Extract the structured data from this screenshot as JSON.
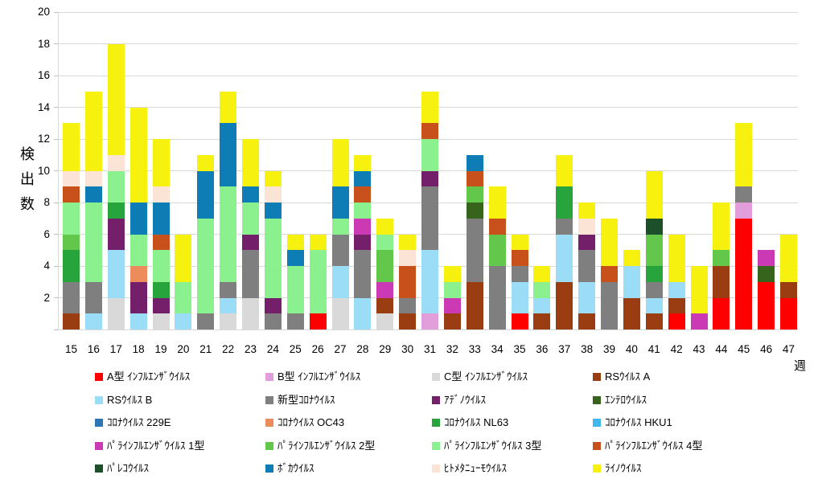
{
  "chart_data": {
    "type": "bar",
    "stacked": true,
    "title": "",
    "xlabel": "週",
    "ylabel": "検出数",
    "ylim": [
      0,
      20
    ],
    "y_tick_step": 2,
    "grid": true,
    "legend_position": "bottom",
    "categories": [
      "15",
      "16",
      "17",
      "18",
      "19",
      "20",
      "21",
      "22",
      "23",
      "24",
      "25",
      "26",
      "27",
      "28",
      "29",
      "30",
      "31",
      "32",
      "33",
      "34",
      "35",
      "36",
      "37",
      "38",
      "39",
      "40",
      "41",
      "42",
      "43",
      "44",
      "45",
      "46",
      "47"
    ],
    "series": [
      {
        "name": "A型 ｲﾝﾌﾙｴﾝｻﾞｳｲﾙｽ",
        "color": "#FF0000",
        "values": [
          0,
          0,
          0,
          0,
          0,
          0,
          0,
          0,
          0,
          0,
          0,
          1,
          0,
          0,
          0,
          0,
          0,
          0,
          0,
          0,
          1,
          0,
          0,
          0,
          0,
          0,
          0,
          1,
          0,
          2,
          7,
          3,
          2
        ]
      },
      {
        "name": "B型 ｲﾝﾌﾙｴﾝｻﾞｳｲﾙｽ",
        "color": "#E19EDA",
        "values": [
          0,
          0,
          0,
          0,
          0,
          0,
          0,
          0,
          0,
          0,
          0,
          0,
          0,
          0,
          0,
          0,
          1,
          0,
          0,
          0,
          0,
          0,
          0,
          0,
          0,
          0,
          0,
          0,
          0,
          0,
          1,
          0,
          0
        ]
      },
      {
        "name": "C型 ｲﾝﾌﾙｴﾝｻﾞｳｲﾙｽ",
        "color": "#D9D9D9",
        "values": [
          0,
          0,
          2,
          0,
          1,
          0,
          0,
          1,
          2,
          0,
          0,
          0,
          2,
          0,
          1,
          0,
          0,
          0,
          0,
          0,
          0,
          0,
          0,
          0,
          0,
          0,
          0,
          0,
          0,
          0,
          0,
          0,
          0
        ]
      },
      {
        "name": "RSｳｲﾙｽ A",
        "color": "#9B3D12",
        "values": [
          1,
          0,
          0,
          0,
          0,
          0,
          0,
          0,
          0,
          0,
          0,
          0,
          0,
          0,
          1,
          1,
          0,
          1,
          3,
          0,
          0,
          1,
          3,
          1,
          0,
          2,
          1,
          1,
          0,
          2,
          0,
          0,
          1
        ]
      },
      {
        "name": "RSｳｲﾙｽ B",
        "color": "#9BDCF6",
        "values": [
          0,
          1,
          3,
          1,
          0,
          1,
          0,
          1,
          0,
          0,
          0,
          0,
          2,
          2,
          0,
          0,
          4,
          0,
          0,
          0,
          2,
          1,
          3,
          2,
          0,
          2,
          1,
          1,
          0,
          0,
          0,
          0,
          0
        ]
      },
      {
        "name": "新型ｺﾛﾅｳｲﾙｽ",
        "color": "#7F7F7F",
        "values": [
          2,
          2,
          0,
          0,
          0,
          0,
          1,
          1,
          3,
          1,
          1,
          0,
          2,
          3,
          0,
          1,
          4,
          0,
          4,
          4,
          1,
          0,
          1,
          2,
          3,
          0,
          1,
          0,
          0,
          0,
          1,
          0,
          0
        ]
      },
      {
        "name": "ｱﾃﾞﾉｳｲﾙｽ",
        "color": "#731F69",
        "values": [
          0,
          0,
          2,
          2,
          1,
          0,
          0,
          0,
          1,
          1,
          0,
          0,
          0,
          1,
          0,
          0,
          1,
          0,
          0,
          0,
          0,
          0,
          0,
          1,
          0,
          0,
          0,
          0,
          0,
          0,
          0,
          0,
          0
        ]
      },
      {
        "name": "ｴﾝﾃﾛｳｲﾙｽ",
        "color": "#37641C",
        "values": [
          0,
          0,
          0,
          0,
          0,
          0,
          0,
          0,
          0,
          0,
          0,
          0,
          0,
          0,
          0,
          0,
          0,
          0,
          1,
          0,
          0,
          0,
          0,
          0,
          0,
          0,
          0,
          0,
          0,
          0,
          0,
          1,
          0
        ]
      },
      {
        "name": "ｺﾛﾅｳｲﾙｽ 229E",
        "color": "#2E75B6",
        "values": [
          0,
          0,
          0,
          0,
          0,
          0,
          0,
          0,
          0,
          0,
          0,
          0,
          0,
          0,
          0,
          0,
          0,
          0,
          0,
          0,
          0,
          0,
          0,
          0,
          0,
          0,
          0,
          0,
          0,
          0,
          0,
          0,
          0
        ]
      },
      {
        "name": "ｺﾛﾅｳｲﾙｽ OC43",
        "color": "#EC8C5C",
        "values": [
          0,
          0,
          0,
          1,
          0,
          0,
          0,
          0,
          0,
          0,
          0,
          0,
          0,
          0,
          0,
          0,
          0,
          0,
          0,
          0,
          0,
          0,
          0,
          0,
          0,
          0,
          0,
          0,
          0,
          0,
          0,
          0,
          0
        ]
      },
      {
        "name": "ｺﾛﾅｳｲﾙｽ NL63",
        "color": "#28A43C",
        "values": [
          2,
          0,
          1,
          0,
          1,
          0,
          0,
          0,
          0,
          0,
          0,
          0,
          0,
          0,
          0,
          0,
          0,
          0,
          0,
          0,
          0,
          0,
          2,
          0,
          0,
          0,
          1,
          0,
          0,
          0,
          0,
          0,
          0
        ]
      },
      {
        "name": "ｺﾛﾅｳｲﾙｽ HKU1",
        "color": "#41B8ED",
        "values": [
          0,
          0,
          0,
          0,
          0,
          0,
          0,
          0,
          0,
          0,
          0,
          0,
          0,
          0,
          0,
          0,
          0,
          0,
          0,
          0,
          0,
          0,
          0,
          0,
          0,
          0,
          0,
          0,
          0,
          0,
          0,
          0,
          0
        ]
      },
      {
        "name": "ﾊﾟﾗｲﾝﾌﾙｴﾝｻﾞｳｲﾙｽ 1型",
        "color": "#CB39B4",
        "values": [
          0,
          0,
          0,
          0,
          0,
          0,
          0,
          0,
          0,
          0,
          0,
          0,
          0,
          1,
          1,
          0,
          0,
          1,
          0,
          0,
          0,
          0,
          0,
          0,
          0,
          0,
          0,
          0,
          1,
          0,
          0,
          1,
          0
        ]
      },
      {
        "name": "ﾊﾟﾗｲﾝﾌﾙｴﾝｻﾞｳｲﾙｽ 2型",
        "color": "#63C74B",
        "values": [
          1,
          0,
          0,
          0,
          0,
          0,
          0,
          0,
          0,
          0,
          0,
          0,
          0,
          0,
          2,
          0,
          0,
          0,
          1,
          2,
          0,
          0,
          0,
          0,
          0,
          0,
          2,
          0,
          0,
          1,
          0,
          0,
          0
        ]
      },
      {
        "name": "ﾊﾟﾗｲﾝﾌﾙｴﾝｻﾞｳｲﾙｽ 3型",
        "color": "#8BF18F",
        "values": [
          2,
          5,
          2,
          2,
          2,
          2,
          6,
          6,
          2,
          5,
          3,
          4,
          1,
          1,
          1,
          0,
          2,
          1,
          0,
          0,
          0,
          1,
          0,
          0,
          0,
          0,
          0,
          0,
          0,
          0,
          0,
          0,
          0
        ]
      },
      {
        "name": "ﾊﾟﾗｲﾝﾌﾙｴﾝｻﾞｳｲﾙｽ 4型",
        "color": "#C8511B",
        "values": [
          1,
          0,
          0,
          0,
          1,
          0,
          0,
          0,
          0,
          0,
          0,
          0,
          0,
          1,
          0,
          2,
          1,
          0,
          1,
          1,
          1,
          0,
          0,
          0,
          1,
          0,
          0,
          0,
          0,
          0,
          0,
          0,
          0
        ]
      },
      {
        "name": "ﾊﾟﾚｺｳｲﾙｽ",
        "color": "#1C4F2A",
        "values": [
          0,
          0,
          0,
          0,
          0,
          0,
          0,
          0,
          0,
          0,
          0,
          0,
          0,
          0,
          0,
          0,
          0,
          0,
          0,
          0,
          0,
          0,
          0,
          0,
          0,
          0,
          1,
          0,
          0,
          0,
          0,
          0,
          0
        ]
      },
      {
        "name": "ﾎﾞｶｳｲﾙｽ",
        "color": "#0E7CB5",
        "values": [
          0,
          1,
          0,
          2,
          2,
          0,
          3,
          4,
          1,
          1,
          1,
          0,
          2,
          1,
          0,
          0,
          0,
          0,
          1,
          0,
          0,
          0,
          0,
          0,
          0,
          0,
          0,
          0,
          0,
          0,
          0,
          0,
          0
        ]
      },
      {
        "name": "ﾋﾄﾒﾀﾆｭｰﾓｳｲﾙｽ",
        "color": "#FBE3D5",
        "values": [
          1,
          1,
          1,
          0,
          1,
          0,
          0,
          0,
          0,
          1,
          0,
          0,
          0,
          0,
          0,
          1,
          0,
          0,
          0,
          0,
          0,
          0,
          0,
          1,
          0,
          0,
          0,
          0,
          0,
          0,
          0,
          0,
          0
        ]
      },
      {
        "name": "ﾗｲﾉｳｲﾙｽ",
        "color": "#F7F110",
        "values": [
          3,
          5,
          7,
          6,
          3,
          3,
          1,
          2,
          3,
          1,
          1,
          1,
          3,
          1,
          1,
          1,
          2,
          1,
          0,
          2,
          1,
          1,
          2,
          1,
          3,
          1,
          3,
          3,
          3,
          3,
          4,
          0,
          3
        ]
      }
    ]
  }
}
